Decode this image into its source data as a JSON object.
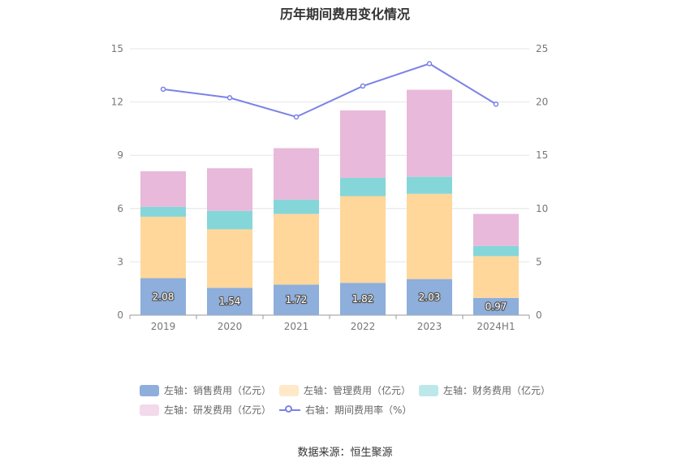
{
  "chart_data": {
    "type": "bar",
    "title": "历年期间费用变化情况",
    "categories": [
      "2019",
      "2020",
      "2021",
      "2022",
      "2023",
      "2024H1"
    ],
    "stacked": true,
    "left_axis": {
      "ylim": [
        0,
        15
      ],
      "ticks": [
        "0",
        "3",
        "6",
        "9",
        "12",
        "15"
      ]
    },
    "right_axis": {
      "ylim": [
        0,
        25
      ],
      "ticks": [
        "0",
        "5",
        "10",
        "15",
        "20",
        "25"
      ]
    },
    "series": [
      {
        "name": "左轴：销售费用（亿元）",
        "axis": "left",
        "type": "bar",
        "color": "#8eaedb",
        "values": [
          2.08,
          1.54,
          1.72,
          1.82,
          2.03,
          0.97
        ],
        "labels": [
          "2.08",
          "1.54",
          "1.72",
          "1.82",
          "2.03",
          "0.97"
        ]
      },
      {
        "name": "左轴：管理费用（亿元）",
        "axis": "left",
        "type": "bar",
        "color": "#ffd79b",
        "values": [
          3.46,
          3.29,
          3.98,
          4.88,
          4.8,
          2.35
        ]
      },
      {
        "name": "左轴：财务费用（亿元）",
        "axis": "left",
        "type": "bar",
        "color": "#85d6d9",
        "values": [
          0.56,
          1.04,
          0.8,
          1.03,
          0.96,
          0.58
        ]
      },
      {
        "name": "左轴：研发费用（亿元）",
        "axis": "left",
        "type": "bar",
        "color": "#e8b9da",
        "values": [
          2.0,
          2.4,
          2.9,
          3.8,
          4.9,
          1.8
        ]
      },
      {
        "name": "右轴：期间费用率（%）",
        "axis": "right",
        "type": "line",
        "color": "#7b82e6",
        "values": [
          21.2,
          20.4,
          18.6,
          21.5,
          23.6,
          19.8
        ]
      }
    ],
    "legend_position": "bottom",
    "grid": true
  },
  "source": "数据来源：恒生聚源"
}
